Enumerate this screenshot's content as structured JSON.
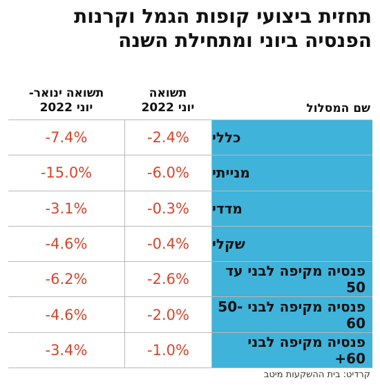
{
  "title": {
    "line1": "תחזית ביצועי קופות הגמל וקרנות",
    "line2": "הפנסיה ביוני ומתחילת השנה"
  },
  "headers": {
    "name": "שם המסלול",
    "june_line1": "תשואה",
    "june_line2": "יוני 2022",
    "ytd_line1": "תשואה ינואר-",
    "ytd_line2": "יוני 2022"
  },
  "rows": [
    {
      "name": "כללי",
      "june": "-2.4%",
      "ytd": "-7.4%"
    },
    {
      "name": "מנייתי",
      "june": "-6.0%",
      "ytd": "-15.0%"
    },
    {
      "name": "מדדי",
      "june": "-0.3%",
      "ytd": "-3.1%"
    },
    {
      "name": "שקלי",
      "june": "-0.4%",
      "ytd": "-4.6%"
    },
    {
      "name": "פנסיה מקיפה לבני עד 50",
      "june": "-2.6%",
      "ytd": "-6.2%"
    },
    {
      "name": "פנסיה מקיפה לבני 50-60",
      "june": "-2.0%",
      "ytd": "-4.6%"
    },
    {
      "name": "פנסיה מקיפה לבני 60+",
      "june": "-1.0%",
      "ytd": "-3.4%"
    }
  ],
  "credit": "קרדיט: בית ההשקעות מיטב",
  "colors": {
    "name_cell": "#3fb3da",
    "value_text": "#d9432a",
    "grid": "#b9b9b9"
  }
}
